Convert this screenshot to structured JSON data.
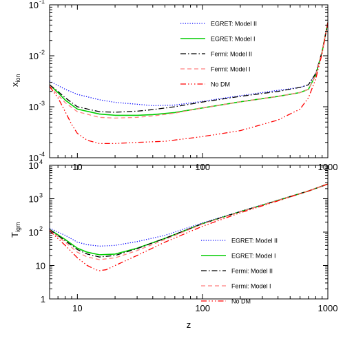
{
  "chart_data": [
    {
      "type": "line",
      "xlabel": "z",
      "ylabel_main": "x",
      "ylabel_sub": "ion",
      "xscale": "log",
      "yscale": "log",
      "xlim": [
        6,
        1000
      ],
      "ylim": [
        0.0001,
        0.1
      ],
      "x_ticks": [
        10,
        100,
        1000
      ],
      "x_tick_labels": [
        "10",
        "100",
        "1000"
      ],
      "y_ticks": [
        0.0001,
        0.001,
        0.01,
        0.1
      ],
      "y_tick_labels": [
        [
          "10",
          "-4"
        ],
        [
          "10",
          "-3"
        ],
        [
          "10",
          "-2"
        ],
        [
          "10",
          "-1"
        ]
      ],
      "legend": "top-center",
      "series": [
        {
          "name": "EGRET: Model II",
          "color": "#0000ff",
          "dash": "dotted",
          "x": [
            6,
            7,
            8,
            10,
            15,
            20,
            30,
            40,
            60,
            100,
            200,
            400,
            600,
            700,
            800,
            900,
            1000
          ],
          "y": [
            0.0032,
            0.0026,
            0.0022,
            0.00175,
            0.00137,
            0.00122,
            0.00112,
            0.00105,
            0.00108,
            0.00128,
            0.00165,
            0.0021,
            0.0024,
            0.0027,
            0.0045,
            0.012,
            0.045
          ]
        },
        {
          "name": "EGRET: Model I",
          "color": "#00cc00",
          "dash": "solid",
          "x": [
            6,
            7,
            8,
            10,
            15,
            20,
            30,
            40,
            60,
            100,
            200,
            400,
            600,
            700,
            800,
            900,
            1000
          ],
          "y": [
            0.0027,
            0.0019,
            0.00135,
            0.0009,
            0.00072,
            0.00068,
            0.00068,
            0.0007,
            0.00077,
            0.00095,
            0.00125,
            0.0016,
            0.0019,
            0.0022,
            0.0042,
            0.012,
            0.045
          ]
        },
        {
          "name": "Fermi: Model II",
          "color": "#000000",
          "dash": "dashdot",
          "x": [
            6,
            7,
            8,
            10,
            15,
            20,
            30,
            40,
            60,
            100,
            200,
            400,
            600,
            700,
            800,
            900,
            1000
          ],
          "y": [
            0.0027,
            0.002,
            0.0015,
            0.001,
            0.0008,
            0.00078,
            0.00082,
            0.00088,
            0.001,
            0.00124,
            0.0016,
            0.002,
            0.0024,
            0.0027,
            0.0045,
            0.012,
            0.045
          ]
        },
        {
          "name": "Fermi: Model I",
          "color": "#ff7f7f",
          "dash": "dashed",
          "x": [
            6,
            7,
            8,
            10,
            15,
            20,
            30,
            40,
            60,
            100,
            200,
            400,
            600,
            700,
            800,
            900,
            1000
          ],
          "y": [
            0.0026,
            0.0017,
            0.0012,
            0.0008,
            0.00062,
            0.0006,
            0.00062,
            0.00066,
            0.00075,
            0.00095,
            0.00125,
            0.0016,
            0.0019,
            0.0022,
            0.0042,
            0.012,
            0.045
          ]
        },
        {
          "name": "No DM",
          "color": "#ff0000",
          "dash": "dashdotdotdot",
          "x": [
            6,
            7,
            8,
            9,
            10,
            12,
            15,
            20,
            30,
            50,
            100,
            200,
            400,
            600,
            700,
            800,
            900,
            1000
          ],
          "y": [
            0.0025,
            0.0015,
            0.0008,
            0.00045,
            0.0003,
            0.00022,
            0.00019,
            0.00019,
            0.0002,
            0.00021,
            0.00026,
            0.00034,
            0.00055,
            0.0009,
            0.0015,
            0.0035,
            0.011,
            0.045
          ]
        }
      ]
    },
    {
      "type": "line",
      "xlabel": "z",
      "ylabel_main": "T",
      "ylabel_sub": "igm",
      "xscale": "log",
      "yscale": "log",
      "xlim": [
        6,
        1000
      ],
      "ylim": [
        1,
        10000
      ],
      "x_ticks": [
        10,
        100,
        1000
      ],
      "x_tick_labels": [
        "10",
        "100",
        "1000"
      ],
      "y_ticks": [
        1,
        10,
        100,
        1000,
        10000
      ],
      "y_tick_labels": [
        [
          "1",
          ""
        ],
        [
          "10",
          ""
        ],
        [
          "10",
          "2"
        ],
        [
          "10",
          "3"
        ],
        [
          "10",
          "4"
        ]
      ],
      "legend": "center-right",
      "series": [
        {
          "name": "EGRET: Model II",
          "color": "#0000ff",
          "dash": "dotted",
          "x": [
            6,
            8,
            10,
            12,
            15,
            20,
            30,
            50,
            100,
            200,
            400,
            700,
            1000
          ],
          "y": [
            130,
            80,
            50,
            42,
            38,
            40,
            52,
            80,
            190,
            420,
            900,
            1700,
            2750
          ]
        },
        {
          "name": "EGRET: Model I",
          "color": "#00cc00",
          "dash": "solid",
          "x": [
            6,
            8,
            10,
            12,
            15,
            20,
            30,
            50,
            100,
            200,
            400,
            700,
            1000
          ],
          "y": [
            120,
            60,
            33,
            25,
            21,
            22,
            33,
            65,
            180,
            410,
            890,
            1700,
            2750
          ]
        },
        {
          "name": "Fermi: Model II",
          "color": "#000000",
          "dash": "dashdot",
          "x": [
            6,
            8,
            10,
            12,
            15,
            20,
            30,
            50,
            100,
            200,
            400,
            700,
            1000
          ],
          "y": [
            120,
            55,
            30,
            22,
            18,
            20,
            32,
            65,
            180,
            410,
            890,
            1700,
            2750
          ]
        },
        {
          "name": "Fermi: Model I",
          "color": "#ff7f7f",
          "dash": "dashed",
          "x": [
            6,
            8,
            10,
            12,
            15,
            20,
            30,
            50,
            100,
            200,
            400,
            700,
            1000
          ],
          "y": [
            115,
            50,
            25,
            18,
            15,
            17,
            28,
            60,
            175,
            405,
            885,
            1700,
            2750
          ]
        },
        {
          "name": "No DM",
          "color": "#ff0000",
          "dash": "dashdotdotdot",
          "x": [
            6,
            8,
            10,
            12,
            14,
            15,
            17,
            20,
            30,
            50,
            100,
            200,
            400,
            700,
            1000
          ],
          "y": [
            110,
            40,
            17,
            10,
            7.5,
            7,
            7.5,
            10,
            20,
            50,
            150,
            380,
            860,
            1700,
            2750
          ]
        }
      ]
    }
  ]
}
